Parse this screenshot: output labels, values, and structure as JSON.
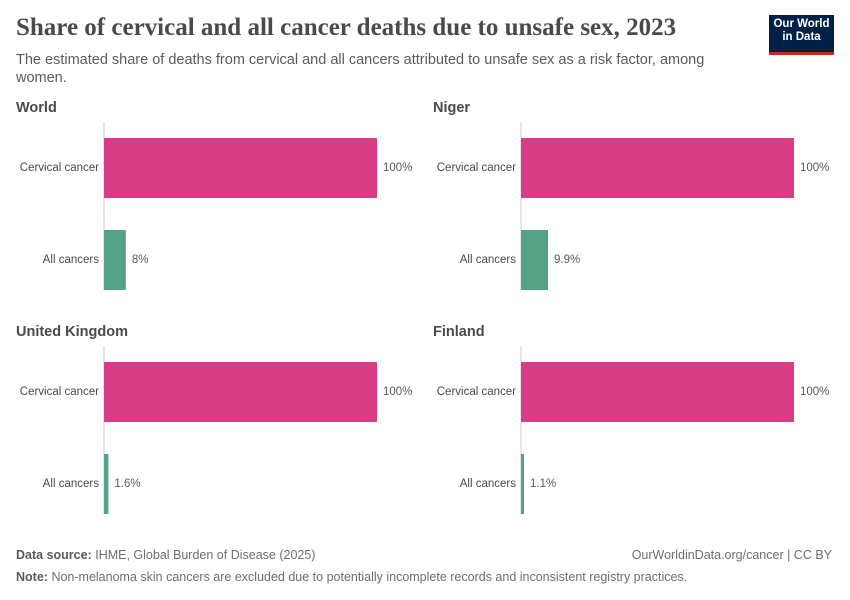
{
  "header": {
    "title": "Share of cervical and all cancer deaths due to unsafe sex, 2023",
    "subtitle": "The estimated share of deaths from cervical and all cancers attributed to unsafe sex as a risk factor, among women."
  },
  "logo": {
    "line1": "Our World",
    "line2": "in Data"
  },
  "footer": {
    "source_label": "Data source:",
    "source": "IHME, Global Burden of Disease (2025)",
    "url": "OurWorldinData.org/cancer | CC BY",
    "note_label": "Note:",
    "note": "Non-melanoma skin cancers are excluded due to potentially incomplete records and inconsistent registry practices."
  },
  "chart_data": [
    {
      "type": "bar",
      "orientation": "horizontal",
      "title": "World",
      "categories": [
        "Cervical cancer",
        "All cancers"
      ],
      "values": [
        100,
        8
      ],
      "value_labels": [
        "100%",
        "8%"
      ],
      "colors": [
        "#d73c85",
        "#55a186"
      ]
    },
    {
      "type": "bar",
      "orientation": "horizontal",
      "title": "Niger",
      "categories": [
        "Cervical cancer",
        "All cancers"
      ],
      "values": [
        100,
        9.9
      ],
      "value_labels": [
        "100%",
        "9.9%"
      ],
      "colors": [
        "#d73c85",
        "#55a186"
      ]
    },
    {
      "type": "bar",
      "orientation": "horizontal",
      "title": "United Kingdom",
      "categories": [
        "Cervical cancer",
        "All cancers"
      ],
      "values": [
        100,
        1.6
      ],
      "value_labels": [
        "100%",
        "1.6%"
      ],
      "colors": [
        "#d73c85",
        "#55a186"
      ]
    },
    {
      "type": "bar",
      "orientation": "horizontal",
      "title": "Finland",
      "categories": [
        "Cervical cancer",
        "All cancers"
      ],
      "values": [
        100,
        1.1
      ],
      "value_labels": [
        "100%",
        "1.1%"
      ],
      "colors": [
        "#d73c85",
        "#55a186"
      ]
    }
  ]
}
